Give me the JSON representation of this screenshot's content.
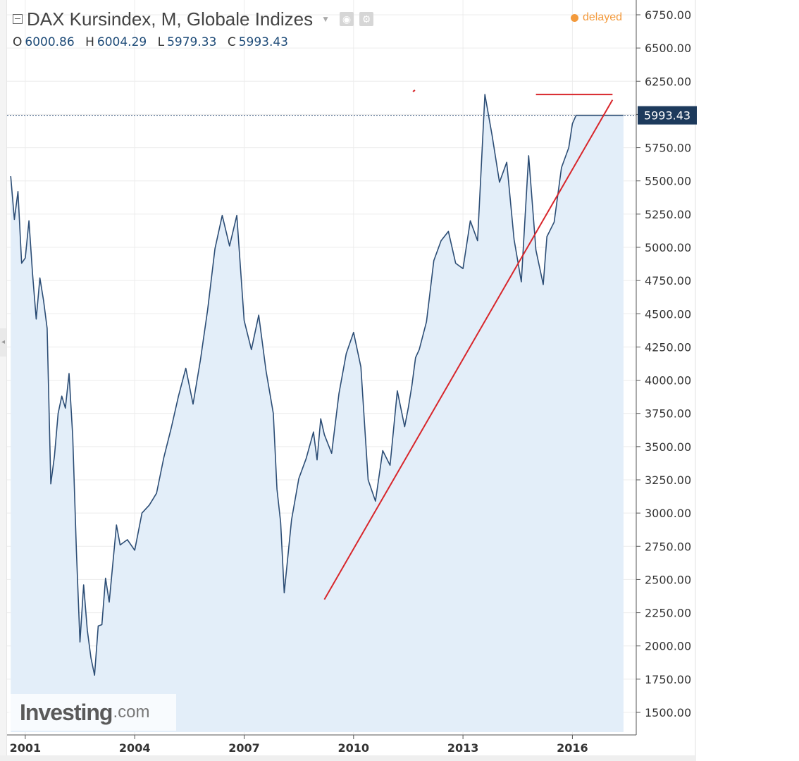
{
  "header": {
    "title": "DAX Kursindex, M, Globale Indizes",
    "status": "delayed",
    "ohlc": [
      {
        "label": "O",
        "value": "6000.86"
      },
      {
        "label": "H",
        "value": "6004.29"
      },
      {
        "label": "L",
        "value": "5979.33"
      },
      {
        "label": "C",
        "value": "5993.43"
      }
    ]
  },
  "icons": {
    "collapse": "minus-square-icon",
    "dropdown": "caret-down-icon",
    "visibility": "eye-icon",
    "settings": "gear-icon",
    "status": "dot-icon"
  },
  "watermark": {
    "main": "Investing",
    "suffix": ".com"
  },
  "colors": {
    "line": "#2c4d75",
    "area": "#e3eef9",
    "trendline": "#d8262b",
    "price_label_bg": "#1d3a5c",
    "delayed": "#f39a3c"
  },
  "chart_data": {
    "type": "area",
    "title": "DAX Kursindex, M, Globale Indizes",
    "xlabel": "",
    "ylabel": "",
    "ylim": [
      1250,
      6800
    ],
    "xlim": [
      2000.5,
      2017.75
    ],
    "grid": true,
    "x_ticks": [
      2001,
      2004,
      2007,
      2010,
      2013,
      2016
    ],
    "x_tick_labels": [
      "2001",
      "2004",
      "2007",
      "2010",
      "2013",
      "2016"
    ],
    "y_ticks": [
      1500,
      1750,
      2000,
      2250,
      2500,
      2750,
      3000,
      3250,
      3500,
      3750,
      4000,
      4250,
      4500,
      4750,
      5000,
      5250,
      5500,
      5750,
      6000,
      6250,
      6500,
      6750
    ],
    "y_tick_labels": [
      "1500.00",
      "1750.00",
      "2000.00",
      "2250.00",
      "2500.00",
      "2750.00",
      "3000.00",
      "3250.00",
      "3500.00",
      "3750.00",
      "4000.00",
      "4250.00",
      "4500.00",
      "4750.00",
      "5000.00",
      "5250.00",
      "5500.00",
      "5750.00",
      "",
      "6250.00",
      "6500.00",
      "6750.00"
    ],
    "last_price": 5993.43,
    "last_price_label": "5993.43",
    "series": [
      {
        "x": [
          2000.6,
          2000.7,
          2000.8,
          2000.9,
          2001.0,
          2001.1,
          2001.2,
          2001.3,
          2001.4,
          2001.5,
          2001.6,
          2001.7,
          2001.8,
          2001.9,
          2002.0,
          2002.1,
          2002.2,
          2002.3,
          2002.4,
          2002.5,
          2002.6,
          2002.7,
          2002.8,
          2002.9,
          2003.0,
          2003.1,
          2003.2,
          2003.3,
          2003.5,
          2003.6,
          2003.8,
          2004.0,
          2004.2,
          2004.4,
          2004.6,
          2004.8,
          2005.0,
          2005.2,
          2005.4,
          2005.6,
          2005.8,
          2006.0,
          2006.2,
          2006.4,
          2006.6,
          2006.8,
          2007.0,
          2007.2,
          2007.4,
          2007.6,
          2007.8,
          2007.9,
          2008.0,
          2008.1,
          2008.3,
          2008.5,
          2008.7,
          2008.9,
          2009.0,
          2009.1,
          2009.2,
          2009.4,
          2009.6,
          2009.8,
          2010.0,
          2010.2,
          2010.4,
          2010.6,
          2010.8,
          2011.0,
          2011.2,
          2011.4,
          2011.5,
          2011.6,
          2011.7,
          2011.8,
          2012.0,
          2012.2,
          2012.4,
          2012.6,
          2012.8,
          2013.0,
          2013.2,
          2013.4,
          2013.6,
          2013.8,
          2014.0,
          2014.2,
          2014.4,
          2014.6,
          2014.8,
          2015.0,
          2015.2,
          2015.3,
          2015.5,
          2015.7,
          2015.9,
          2016.0,
          2016.1,
          2016.2,
          2016.4,
          2016.6,
          2016.8,
          2017.0,
          2017.2,
          2017.4
        ],
        "y": [
          5535,
          5210,
          5420,
          4880,
          4920,
          5200,
          4800,
          4460,
          4770,
          4600,
          4390,
          3220,
          3430,
          3750,
          3880,
          3790,
          4050,
          3580,
          2720,
          2030,
          2460,
          2120,
          1910,
          1780,
          2150,
          2160,
          2510,
          2330,
          2910,
          2760,
          2800,
          2720,
          3000,
          3060,
          3150,
          3420,
          3640,
          3880,
          4090,
          3820,
          4150,
          4530,
          4990,
          5240,
          5010,
          5240,
          4450,
          4230,
          4490,
          4070,
          3750,
          3180,
          2930,
          2400,
          2950,
          3260,
          3410,
          3610,
          3400,
          3710,
          3590,
          3450,
          3900,
          4200,
          4360,
          4100,
          3250,
          3090,
          3470,
          3360,
          3920,
          3650,
          3790,
          3960,
          4170,
          4230,
          4440,
          4900,
          5050,
          5120,
          4880,
          4840,
          5200,
          5050,
          6150,
          5840,
          5490,
          5640,
          5060,
          4740,
          5690,
          4980,
          4720,
          5080,
          5190,
          5600,
          5750,
          5930,
          5993,
          5993,
          5993,
          5993,
          5993,
          5993,
          5993,
          5993
        ]
      }
    ],
    "annotations": [
      {
        "type": "trendline",
        "from": [
          2009.2,
          2350
        ],
        "to": [
          2017.1,
          6110
        ]
      },
      {
        "type": "horizontal_segment",
        "from": [
          2015.0,
          6150
        ],
        "to": [
          2017.1,
          6150
        ]
      }
    ]
  }
}
